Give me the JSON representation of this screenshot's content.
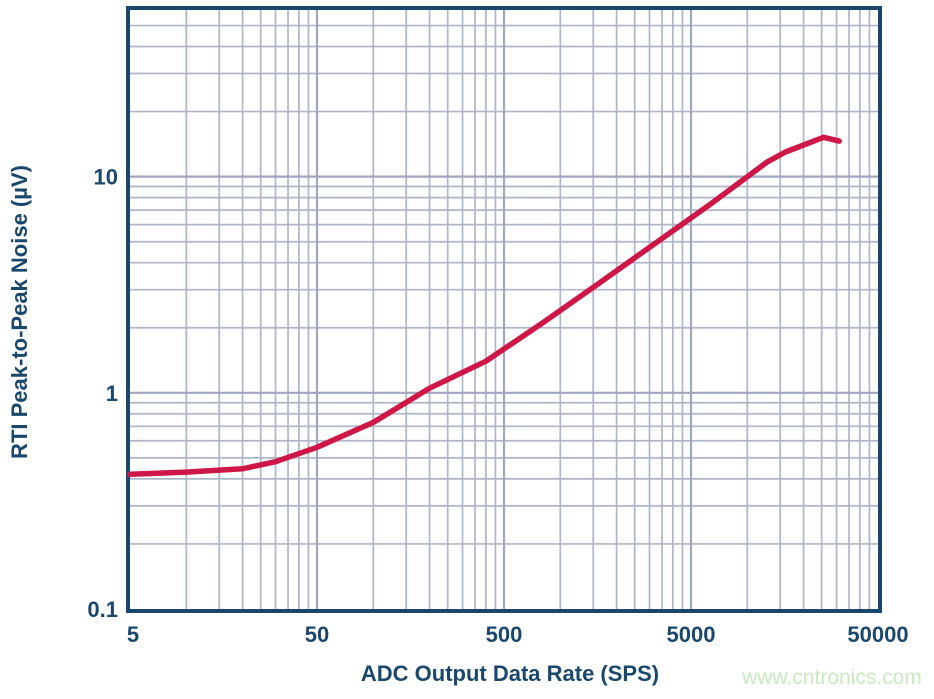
{
  "colors": {
    "axis_navy": "#1A486C",
    "curve_red": "#CF1747",
    "grid_minor": "#AFB5C9",
    "grid_major": "#9FA6BE",
    "watermark_green": "#C8EABE",
    "background": "#FFFFFF"
  },
  "watermark": {
    "text": "www.cntronics.com"
  },
  "chart_data": {
    "type": "line",
    "title": "",
    "xlabel": "ADC Output Data Rate (SPS)",
    "ylabel": "RTI Peak-to-Peak Noise (µV)",
    "x_scale": "log",
    "y_scale": "log",
    "xlim": [
      5,
      50000
    ],
    "ylim": [
      0.1,
      59
    ],
    "grid": "on (log major + minor)",
    "legend": "none",
    "x_ticks": [
      {
        "value": 5,
        "label": "5"
      },
      {
        "value": 50,
        "label": "50"
      },
      {
        "value": 500,
        "label": "500"
      },
      {
        "value": 5000,
        "label": "5000"
      },
      {
        "value": 50000,
        "label": "50000"
      }
    ],
    "y_ticks": [
      {
        "value": 0.1,
        "label": "0.1"
      },
      {
        "value": 1,
        "label": "1"
      },
      {
        "value": 10,
        "label": "10"
      }
    ],
    "series": [
      {
        "name": "RTI peak-to-peak noise",
        "points": [
          [
            5,
            0.42
          ],
          [
            10,
            0.43
          ],
          [
            20,
            0.445
          ],
          [
            30,
            0.48
          ],
          [
            50,
            0.56
          ],
          [
            100,
            0.73
          ],
          [
            200,
            1.05
          ],
          [
            400,
            1.4
          ],
          [
            800,
            2.1
          ],
          [
            1600,
            3.2
          ],
          [
            3200,
            4.9
          ],
          [
            6400,
            7.5
          ],
          [
            12800,
            11.7
          ],
          [
            16000,
            13.0
          ],
          [
            25600,
            15.2
          ],
          [
            31000,
            14.6
          ]
        ]
      }
    ]
  }
}
